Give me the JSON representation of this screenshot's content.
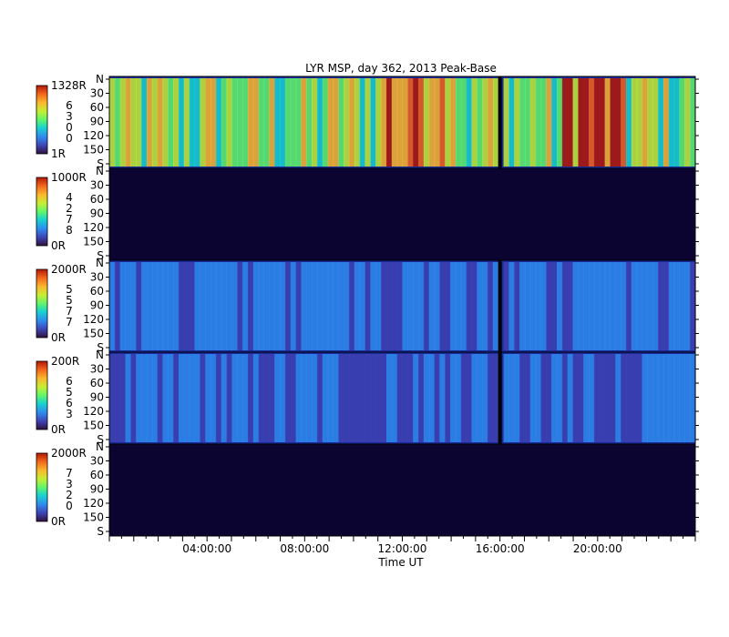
{
  "title": "LYR MSP, day 362, 2013 Peak-Base",
  "colors": {
    "background": "#ffffff",
    "empty_panel": "#0b0330",
    "data_gap_line": "#000000",
    "colorbar": [
      "#30123b",
      "#3e42b3",
      "#2f8cf0",
      "#18d3d0",
      "#61f66a",
      "#c5ef34",
      "#fbb72b",
      "#f3631b",
      "#b21807"
    ]
  },
  "chart_data": {
    "type": "heatmap",
    "title": "LYR MSP, day 362, 2013 Peak-Base",
    "xlabel": "Time UT",
    "x_range_hours": [
      0,
      24
    ],
    "x_ticks": [
      {
        "h": 4,
        "label": "04:00:00"
      },
      {
        "h": 8,
        "label": "08:00:00"
      },
      {
        "h": 12,
        "label": "12:00:00"
      },
      {
        "h": 16,
        "label": "16:00:00"
      },
      {
        "h": 20,
        "label": "20:00:00"
      }
    ],
    "y_ticks": [
      "N",
      "30",
      "60",
      "90",
      "120",
      "150",
      "S"
    ],
    "y_tick_values": [
      0,
      30,
      60,
      90,
      120,
      150,
      180
    ],
    "y_range": [
      0,
      180
    ],
    "data_gap_hours": 16.0,
    "panels": [
      {
        "cb_max": "1328R",
        "cb_min": "1R",
        "channel": [
          "6",
          "3",
          "0",
          "0"
        ],
        "has_data": true,
        "intensity": 0.55
      },
      {
        "cb_max": "1000R",
        "cb_min": "0R",
        "channel": [
          "4",
          "2",
          "7",
          "8"
        ],
        "has_data": false,
        "intensity": 0.0
      },
      {
        "cb_max": "2000R",
        "cb_min": "0R",
        "channel": [
          "5",
          "5",
          "7",
          "7"
        ],
        "has_data": true,
        "intensity": 0.22
      },
      {
        "cb_max": "200R",
        "cb_min": "0R",
        "channel": [
          "6",
          "5",
          "6",
          "3"
        ],
        "has_data": true,
        "intensity": 0.18
      },
      {
        "cb_max": "2000R",
        "cb_min": "0R",
        "channel": [
          "7",
          "3",
          "2",
          "0"
        ],
        "has_data": false,
        "intensity": 0.0
      }
    ]
  }
}
